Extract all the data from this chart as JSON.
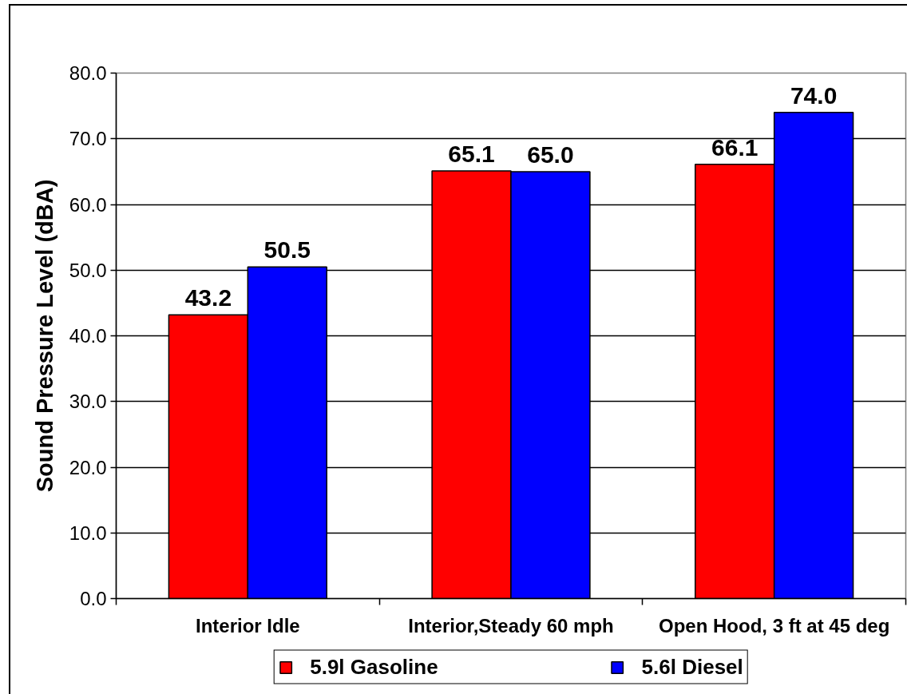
{
  "chart_data": {
    "type": "bar",
    "ylabel": "Sound Pressure Level (dBA)",
    "categories": [
      "Interior Idle",
      "Interior,Steady 60 mph",
      "Open Hood, 3 ft at 45 deg"
    ],
    "series": [
      {
        "name": "5.9l Gasoline",
        "color": "#ff0000",
        "values": [
          43.2,
          65.1,
          66.1
        ],
        "value_labels": [
          "43.2",
          "65.1",
          "66.1"
        ]
      },
      {
        "name": "5.6l Diesel",
        "color": "#0000ff",
        "values": [
          50.5,
          65.0,
          74.0
        ],
        "value_labels": [
          "50.5",
          "65.0",
          "74.0"
        ]
      }
    ],
    "ylim": [
      0,
      80
    ],
    "yticks": [
      {
        "value": 0,
        "label": "0.0"
      },
      {
        "value": 10,
        "label": "10.0"
      },
      {
        "value": 20,
        "label": "20.0"
      },
      {
        "value": 30,
        "label": "30.0"
      },
      {
        "value": 40,
        "label": "40.0"
      },
      {
        "value": 50,
        "label": "50.0"
      },
      {
        "value": 60,
        "label": "60.0"
      },
      {
        "value": 70,
        "label": "70.0"
      },
      {
        "value": 80,
        "label": "80.0"
      }
    ],
    "grid": "y",
    "legend": "bottom"
  }
}
